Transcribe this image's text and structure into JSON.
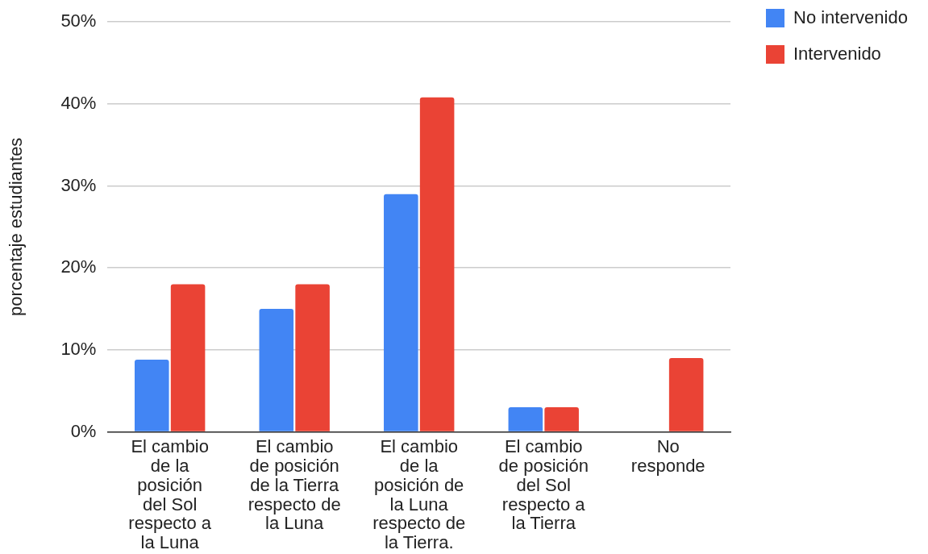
{
  "chart_data": {
    "type": "bar",
    "ylabel": "porcentaje estudiantes",
    "categories": [
      "El cambio de la posición del Sol respecto a la Luna",
      "El cambio de posición de la Tierra respecto de la Luna",
      "El cambio de la posición de la Luna respecto de la Tierra.",
      "El cambio de posición del Sol respecto a la Tierra",
      "No responde"
    ],
    "series": [
      {
        "name": "No intervenido",
        "color": "#4285f4",
        "values": [
          8.8,
          15,
          29,
          3,
          null
        ]
      },
      {
        "name": "Intervenido",
        "color": "#ea4335",
        "values": [
          18,
          18,
          40.8,
          3,
          9
        ]
      }
    ],
    "ylim": [
      0,
      50
    ],
    "yticks": [
      {
        "value": 0,
        "label": "0%"
      },
      {
        "value": 10,
        "label": "10%"
      },
      {
        "value": 20,
        "label": "20%"
      },
      {
        "value": 30,
        "label": "30%"
      },
      {
        "value": 40,
        "label": "40%"
      },
      {
        "value": 50,
        "label": "50%"
      }
    ],
    "grid": "y",
    "legend": "top right"
  }
}
